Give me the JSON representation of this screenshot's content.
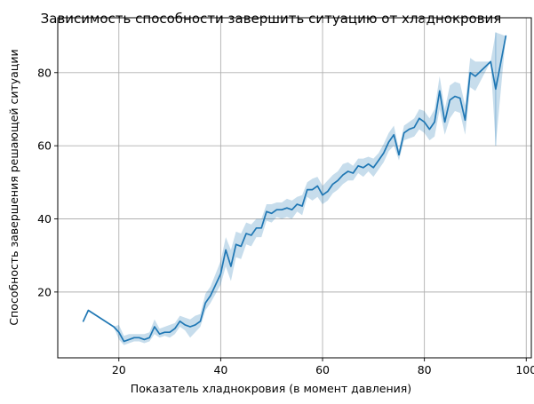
{
  "chart_data": {
    "type": "line",
    "title": "Зависимость способности завершить ситуацию от хладнокровия",
    "xlabel": "Показатель хладнокровия (в момент давления)",
    "ylabel": "Способность завершения решающей ситуации",
    "xlim": [
      8,
      101
    ],
    "ylim": [
      2,
      95
    ],
    "xticks": [
      20,
      40,
      60,
      80,
      100
    ],
    "yticks": [
      20,
      40,
      60,
      80
    ],
    "grid": true,
    "colors": {
      "line": "#1f77b4",
      "band": "#1f77b4"
    },
    "series": [
      {
        "x": [
          13,
          14,
          19,
          20,
          21,
          22,
          23,
          24,
          25,
          26,
          27,
          28,
          29,
          30,
          31,
          32,
          33,
          34,
          35,
          36,
          37,
          38,
          39,
          40,
          41,
          42,
          43,
          44,
          45,
          46,
          47,
          48,
          49,
          50,
          51,
          52,
          53,
          54,
          55,
          56,
          57,
          58,
          59,
          60,
          61,
          62,
          63,
          64,
          65,
          66,
          67,
          68,
          69,
          70,
          71,
          72,
          73,
          74,
          75,
          76,
          77,
          78,
          79,
          80,
          81,
          82,
          83,
          84,
          85,
          86,
          87,
          88,
          89,
          90,
          93,
          94,
          96
        ],
        "y": [
          12,
          15,
          10.5,
          9,
          6.5,
          7,
          7.5,
          7.5,
          7,
          7.5,
          10.5,
          8.5,
          9,
          9,
          10,
          12,
          11,
          10.5,
          11,
          12,
          17,
          19,
          22,
          25,
          31.5,
          27,
          33,
          32.5,
          36,
          35.5,
          37.5,
          37.5,
          42,
          41.5,
          42.5,
          42.5,
          43,
          42.5,
          44,
          43.5,
          48,
          48,
          49,
          46.5,
          47.5,
          49.5,
          50.5,
          52,
          53,
          52.5,
          54.5,
          54,
          55,
          54,
          56,
          58,
          61,
          63,
          57.5,
          63.5,
          64.5,
          65,
          67.5,
          66.5,
          64.5,
          66.5,
          75,
          66.5,
          72.5,
          73.5,
          73,
          67,
          80,
          79,
          83,
          75.5,
          90
        ],
        "lower": [
          12,
          15,
          10.5,
          7,
          5.5,
          6,
          6.5,
          6.5,
          6,
          6.5,
          8.5,
          7.5,
          8,
          7.5,
          8.5,
          10.5,
          9.5,
          7.5,
          9,
          10.5,
          15,
          17,
          19.5,
          22,
          27,
          23,
          29.5,
          29,
          33,
          32.5,
          35,
          35,
          39.5,
          39,
          40.5,
          40,
          40.5,
          40,
          42,
          41,
          46,
          45,
          46,
          44,
          45,
          47,
          48,
          49.5,
          50.5,
          50.5,
          52.5,
          51.5,
          53,
          51.5,
          53.5,
          55.5,
          58.5,
          60,
          56,
          61.5,
          62,
          62.5,
          64.5,
          63.5,
          61.5,
          62.5,
          70,
          63,
          67.5,
          69.5,
          69,
          63,
          76,
          75,
          83,
          60,
          90
        ],
        "upper": [
          12,
          15,
          10.5,
          11,
          8,
          8.5,
          8.5,
          8.5,
          8.5,
          9,
          12.5,
          10,
          10.5,
          11,
          11.5,
          13.5,
          13,
          12.5,
          13.5,
          14,
          19.5,
          21.5,
          25,
          28.5,
          35,
          31.5,
          36.5,
          36,
          39,
          38.5,
          40,
          40,
          44,
          44,
          44.5,
          44.5,
          45.5,
          45,
          46,
          46.5,
          50,
          51,
          51.5,
          49,
          50.5,
          52,
          53,
          55,
          55.5,
          54.5,
          56.5,
          56.5,
          57,
          56.5,
          58,
          60.5,
          63.5,
          65.5,
          59,
          65.5,
          66.5,
          67.5,
          70,
          69.5,
          67.5,
          70,
          79,
          70,
          76.5,
          77.5,
          77,
          71,
          84,
          83,
          83,
          91,
          90
        ]
      }
    ]
  }
}
